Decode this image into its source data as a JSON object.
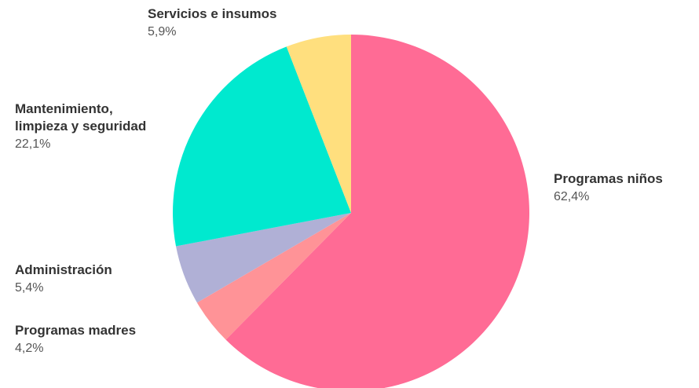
{
  "chart_data": {
    "type": "pie",
    "title": "",
    "slices": [
      {
        "label_lines": [
          "Programas niños"
        ],
        "value": 62.4,
        "value_label": "62,4%",
        "color": "#ff6b95"
      },
      {
        "label_lines": [
          "Programas madres"
        ],
        "value": 4.2,
        "value_label": "4,2%",
        "color": "#ff9397"
      },
      {
        "label_lines": [
          "Administración"
        ],
        "value": 5.4,
        "value_label": "5,4%",
        "color": "#b0b0d6"
      },
      {
        "label_lines": [
          "Mantenimiento,",
          "limpieza y seguridad"
        ],
        "value": 22.1,
        "value_label": "22,1%",
        "color": "#00e9cf"
      },
      {
        "label_lines": [
          "Servicios e insumos"
        ],
        "value": 5.9,
        "value_label": "5,9%",
        "color": "#ffdf7e"
      }
    ],
    "start": "12 o'clock",
    "direction": "clockwise",
    "legend": "none (direct labels)"
  }
}
